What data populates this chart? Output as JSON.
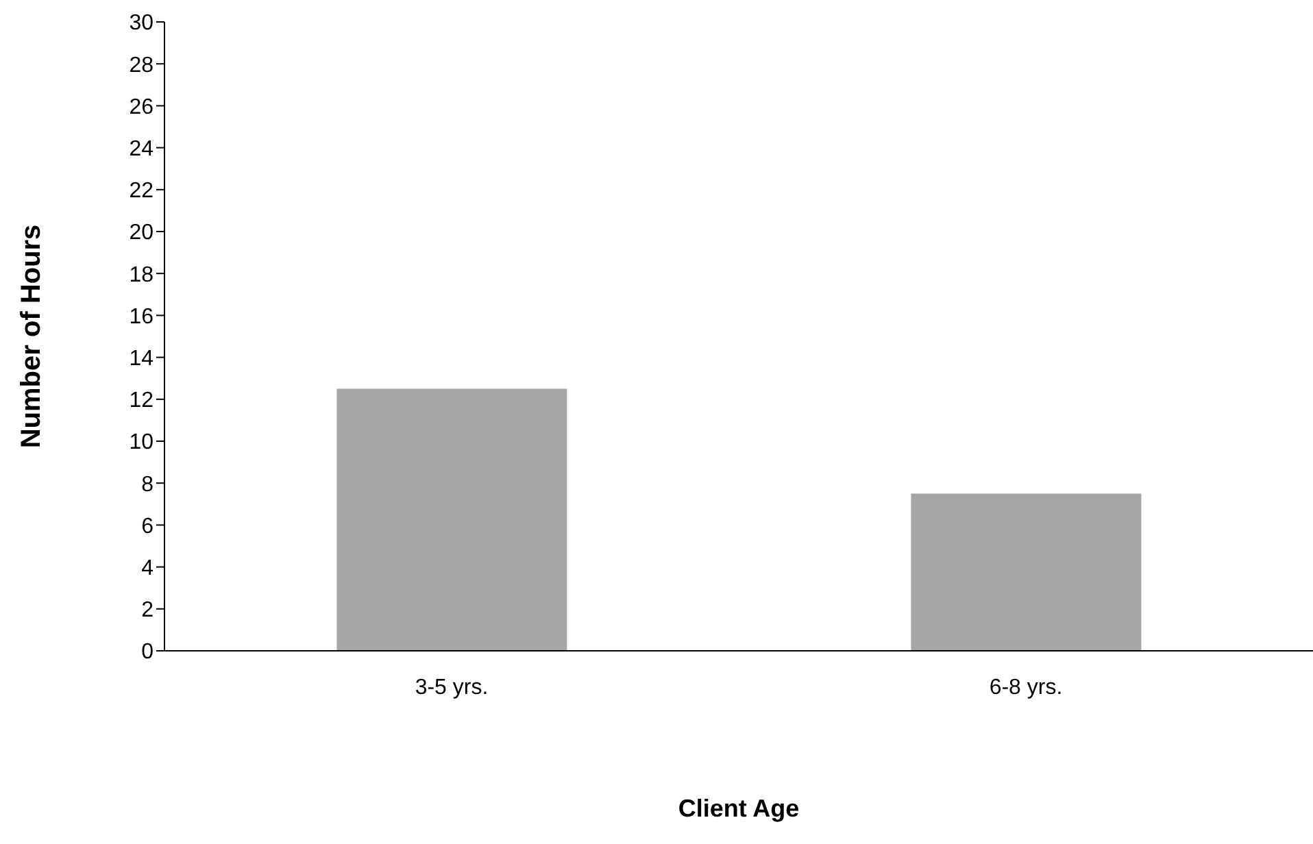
{
  "chart_data": {
    "type": "bar",
    "xlabel": "Client Age",
    "ylabel": "Number of Hours",
    "categories": [
      "3-5 yrs.",
      "6-8 yrs."
    ],
    "values": [
      12.5,
      7.5
    ],
    "color": "#a6a6a6",
    "ylim": [
      0,
      30
    ],
    "yticks": [
      0,
      2,
      4,
      6,
      8,
      10,
      12,
      14,
      16,
      18,
      20,
      22,
      24,
      26,
      28,
      30
    ],
    "grid": false,
    "legend": false
  }
}
